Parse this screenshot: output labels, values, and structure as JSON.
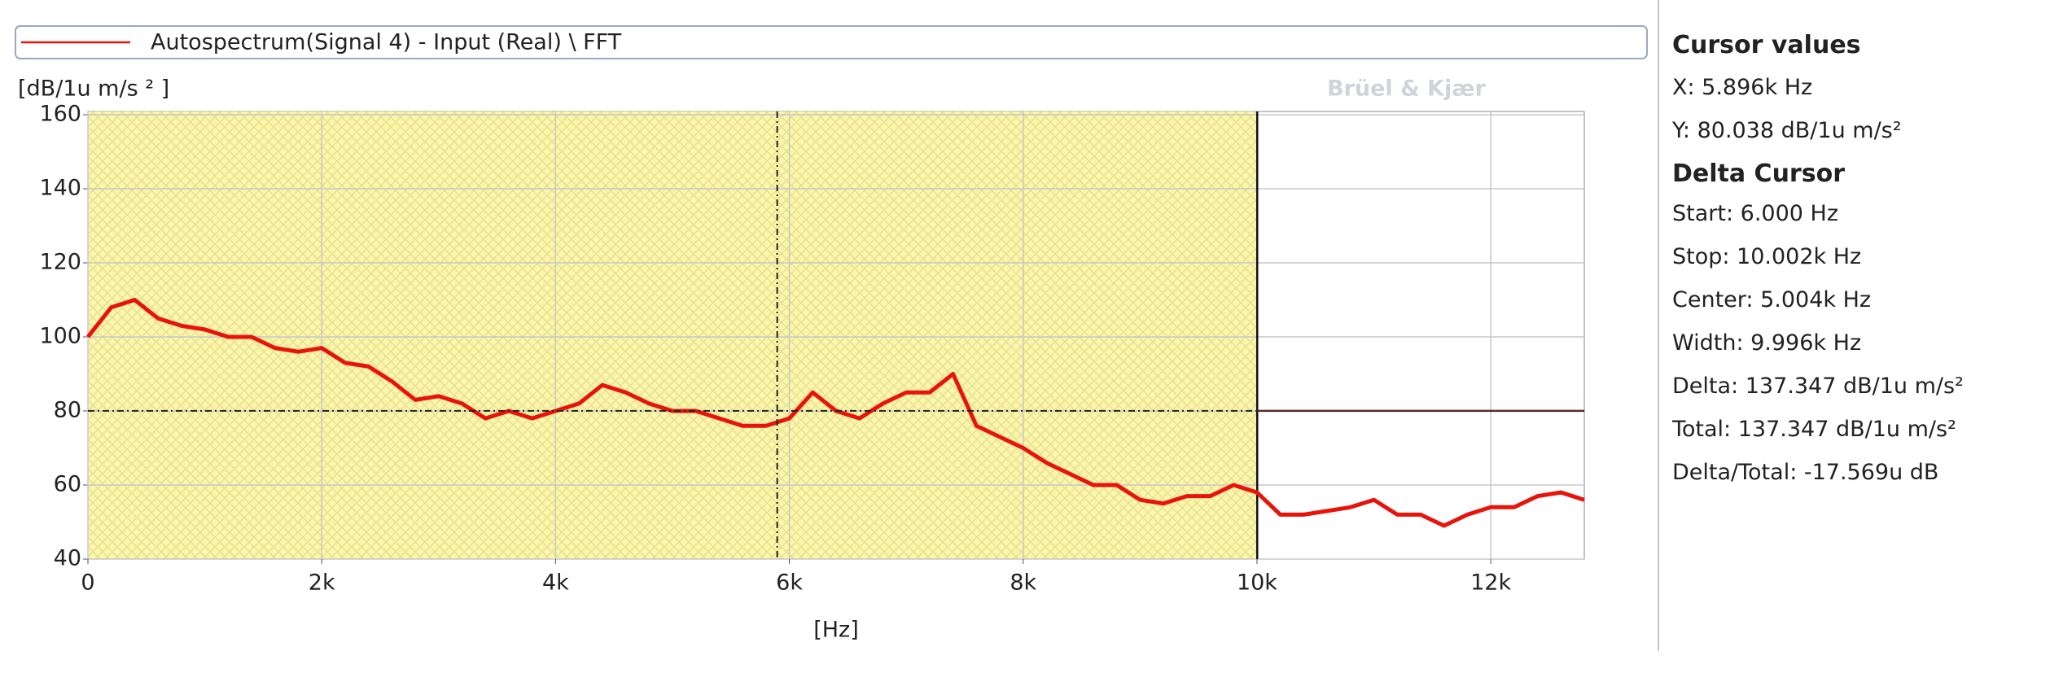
{
  "chart_data": {
    "type": "line",
    "y_label": "[dB/1u m/s ² ]",
    "x_label": "[Hz]",
    "watermark": "Brüel & Kjær",
    "x": [
      0,
      200,
      400,
      600,
      800,
      1000,
      1200,
      1400,
      1600,
      1800,
      2000,
      2200,
      2400,
      2600,
      2800,
      3000,
      3200,
      3400,
      3600,
      3800,
      4000,
      4200,
      4400,
      4600,
      4800,
      5000,
      5200,
      5400,
      5600,
      5800,
      6000,
      6200,
      6400,
      6600,
      6800,
      7000,
      7200,
      7400,
      7600,
      7800,
      8000,
      8200,
      8400,
      8600,
      8800,
      9000,
      9200,
      9400,
      9600,
      9800,
      10000,
      10200,
      10400,
      10600,
      10800,
      11000,
      11200,
      11400,
      11600,
      11800,
      12000,
      12200,
      12400,
      12600,
      12800
    ],
    "series": [
      {
        "name": "Autospectrum(Signal 4) - Input (Real) \\ FFT",
        "color": "#e8140c",
        "values": [
          100,
          108,
          110,
          105,
          103,
          102,
          100,
          100,
          97,
          96,
          97,
          93,
          92,
          88,
          83,
          84,
          82,
          78,
          80,
          78,
          80,
          82,
          87,
          85,
          82,
          80,
          80,
          78,
          76,
          76,
          78,
          85,
          80,
          78,
          82,
          85,
          85,
          90,
          76,
          73,
          70,
          66,
          63,
          60,
          60,
          56,
          55,
          57,
          57,
          60,
          58,
          52,
          52,
          53,
          54,
          56,
          52,
          52,
          49,
          52,
          54,
          54,
          57,
          58,
          56
        ]
      }
    ],
    "xlim": [
      0,
      12800
    ],
    "ylim": [
      40,
      160
    ],
    "xticks": [
      0,
      {
        "value": 2000,
        "label": "2k"
      },
      {
        "value": 4000,
        "label": "4k"
      },
      {
        "value": 6000,
        "label": "6k"
      },
      {
        "value": 8000,
        "label": "8k"
      },
      {
        "value": 10000,
        "label": "10k"
      },
      {
        "value": 12000,
        "label": "12k"
      }
    ],
    "yticks": [
      40,
      60,
      80,
      100,
      120,
      140,
      160
    ],
    "grid": true,
    "cursor": {
      "x": 5896,
      "y": 80.038
    },
    "delta_cursor": {
      "start": 6,
      "stop": 10002
    }
  },
  "cursor_panel": {
    "title": "Cursor values",
    "x": "X: 5.896k Hz",
    "y": "Y: 80.038 dB/1u m/s²",
    "delta_title": "Delta Cursor",
    "lines": [
      "Start: 6.000 Hz",
      "Stop: 10.002k Hz",
      "Center: 5.004k Hz",
      "Width: 9.996k Hz",
      "Delta: 137.347 dB/1u m/s²",
      "Total: 137.347 dB/1u m/s²",
      "Delta/Total: -17.569u dB"
    ]
  }
}
